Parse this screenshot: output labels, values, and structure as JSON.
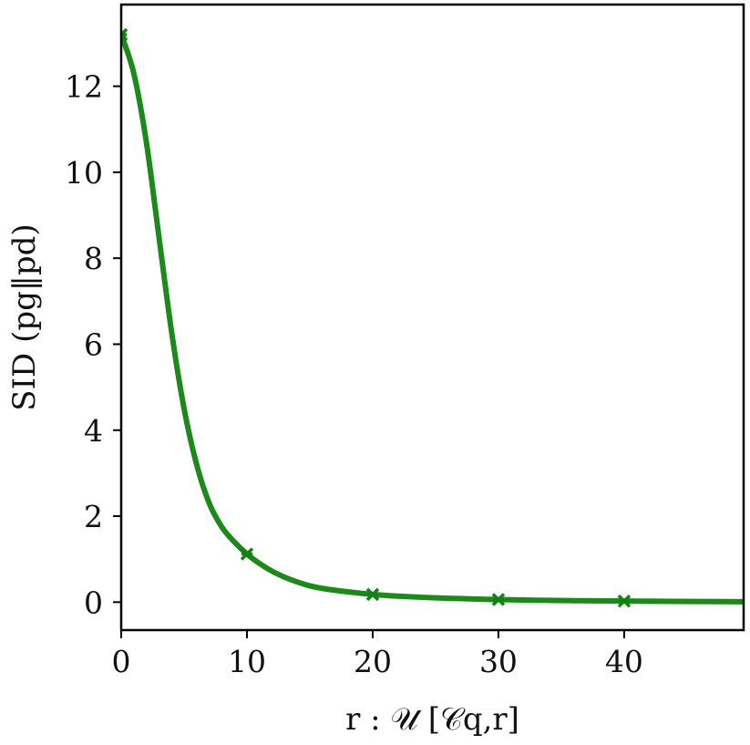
{
  "chart_data": {
    "type": "line",
    "title": "",
    "xlabel": "r : 𝒰 [𝒞q,r]",
    "ylabel": "SID (pg‖pd)",
    "xlim": [
      0,
      49.5
    ],
    "ylim": [
      -0.65,
      13.9
    ],
    "xticks": [
      0,
      10,
      20,
      30,
      40
    ],
    "yticks": [
      0,
      2,
      4,
      6,
      8,
      10,
      12
    ],
    "grid": false,
    "legend": "none",
    "series": [
      {
        "color": "#1b8a1b",
        "marker_color": "#138213",
        "x": [
          0,
          1,
          2,
          3,
          4,
          5,
          6,
          7,
          8,
          9,
          10,
          11,
          12,
          13,
          14,
          15,
          16,
          18,
          20,
          22,
          25,
          28,
          30,
          33,
          36,
          40,
          44,
          49.5
        ],
        "y": [
          13.2,
          12.3,
          10.7,
          8.5,
          6.3,
          4.5,
          3.2,
          2.3,
          1.75,
          1.4,
          1.12,
          0.9,
          0.72,
          0.58,
          0.47,
          0.38,
          0.32,
          0.24,
          0.18,
          0.14,
          0.1,
          0.075,
          0.06,
          0.045,
          0.035,
          0.025,
          0.018,
          0.01
        ],
        "markers_x": [
          0,
          10,
          20,
          30,
          40
        ],
        "markers_y": [
          13.2,
          1.12,
          0.18,
          0.06,
          0.025
        ]
      }
    ]
  }
}
